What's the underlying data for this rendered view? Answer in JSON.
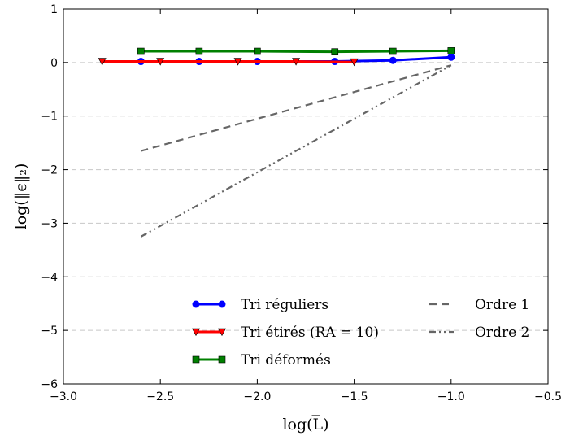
{
  "chart_data": {
    "type": "line",
    "xlabel": "log(L̅)",
    "ylabel": "log(‖ϵ‖₂)",
    "xlim": [
      -3.0,
      -0.5
    ],
    "ylim": [
      -6,
      1
    ],
    "xticks": [
      -3.0,
      -2.5,
      -2.0,
      -1.5,
      -1.0,
      -0.5
    ],
    "xtick_labels": [
      "−3.0",
      "−2.5",
      "−2.0",
      "−1.5",
      "−1.0",
      "−0.5"
    ],
    "yticks": [
      -6,
      -5,
      -4,
      -3,
      -2,
      -1,
      0,
      1
    ],
    "ytick_labels": [
      "−6",
      "−5",
      "−4",
      "−3",
      "−2",
      "−1",
      "0",
      "1"
    ],
    "grid": "horizontal-dashed",
    "series": [
      {
        "name": "Tri réguliers",
        "color": "#0000ff",
        "marker": "circle",
        "style": "solid",
        "x": [
          -2.6,
          -2.3,
          -2.0,
          -1.6,
          -1.3,
          -1.0
        ],
        "y": [
          0.02,
          0.02,
          0.02,
          0.02,
          0.04,
          0.1
        ]
      },
      {
        "name": "Tri étirés (RA = 10)",
        "color": "#ff0000",
        "marker": "triangle-down",
        "style": "solid",
        "x": [
          -2.8,
          -2.5,
          -2.1,
          -1.8,
          -1.5
        ],
        "y": [
          0.02,
          0.02,
          0.02,
          0.02,
          0.01
        ]
      },
      {
        "name": "Tri déformés",
        "color": "#008000",
        "marker": "square",
        "style": "solid",
        "x": [
          -2.6,
          -2.3,
          -2.0,
          -1.6,
          -1.3,
          -1.0
        ],
        "y": [
          0.21,
          0.21,
          0.21,
          0.2,
          0.21,
          0.22
        ]
      },
      {
        "name": "Ordre 1",
        "color": "#666666",
        "marker": "none",
        "style": "dashed",
        "x": [
          -2.6,
          -1.0
        ],
        "y": [
          -1.65,
          -0.05
        ]
      },
      {
        "name": "Ordre 2",
        "color": "#666666",
        "marker": "none",
        "style": "dashdotdot",
        "x": [
          -2.6,
          -1.0
        ],
        "y": [
          -3.25,
          -0.05
        ]
      }
    ],
    "legend": [
      {
        "location": "lower-center",
        "entries": [
          "Tri réguliers",
          "Tri étirés (RA = 10)",
          "Tri déformés"
        ]
      },
      {
        "location": "lower-right",
        "entries": [
          "Ordre 1",
          "Ordre 2"
        ]
      }
    ]
  }
}
